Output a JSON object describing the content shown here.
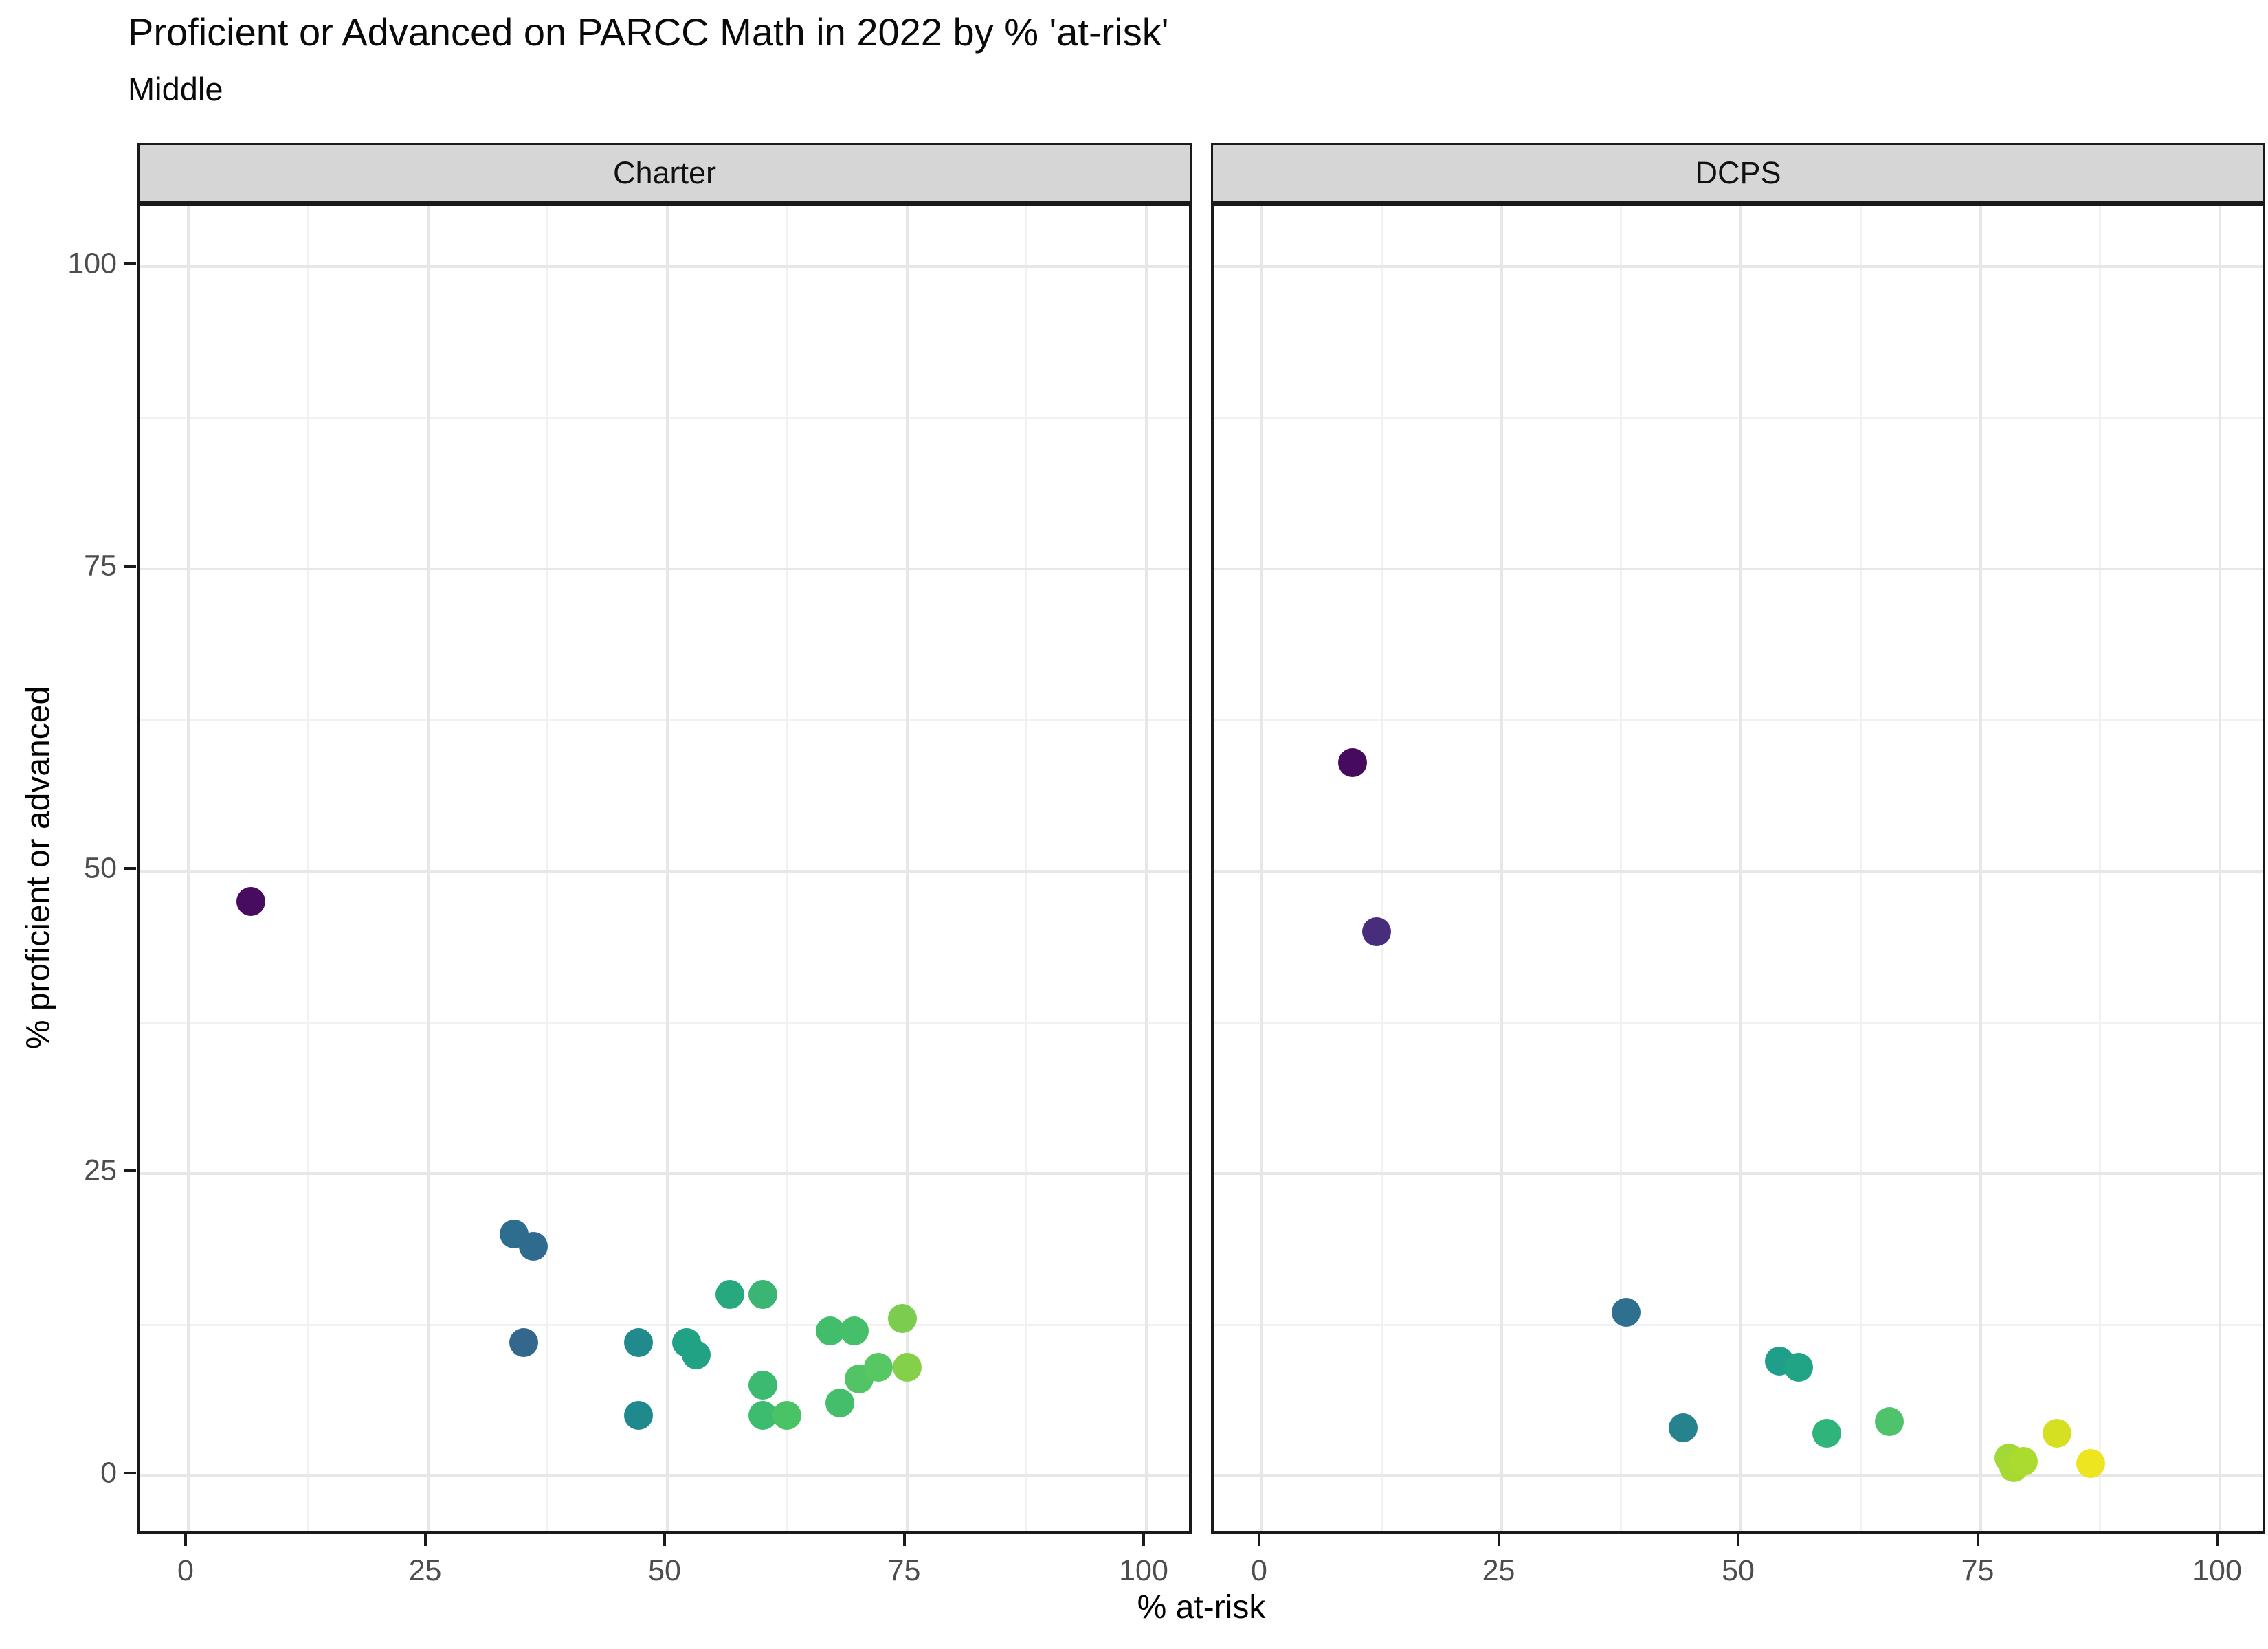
{
  "chart_data": {
    "type": "scatter",
    "title": "Proficient or Advanced on PARCC Math in 2022 by % 'at-risk'",
    "subtitle": "Middle",
    "xlabel": "% at-risk",
    "ylabel": "% proficient or advanced",
    "x_ticks": [
      0,
      25,
      50,
      75,
      100
    ],
    "y_ticks": [
      0,
      25,
      50,
      75,
      100
    ],
    "minor_ticks": [
      12.5,
      37.5,
      62.5,
      87.5
    ],
    "xlim": [
      -5,
      105
    ],
    "ylim": [
      -5,
      105
    ],
    "grid": "on",
    "legend": "none",
    "palette": "viridis",
    "colors": {
      "strip_bg": "#d6d6d6",
      "panel_border": "#1a1a1a",
      "grid_major": "#e7e7e7",
      "grid_minor": "#f1f1f1",
      "tick_label": "#4d4d4d",
      "axis_title": "#000000"
    },
    "facets": [
      {
        "label": "Charter",
        "points": [
          {
            "x": 6.5,
            "y": 47.5,
            "color": "#470b60"
          },
          {
            "x": 34,
            "y": 20,
            "color": "#2d6e8e"
          },
          {
            "x": 36,
            "y": 19,
            "color": "#2f6b8e"
          },
          {
            "x": 35,
            "y": 11,
            "color": "#33678d"
          },
          {
            "x": 47,
            "y": 11,
            "color": "#218a8d"
          },
          {
            "x": 47,
            "y": 5,
            "color": "#1f898d"
          },
          {
            "x": 52,
            "y": 11,
            "color": "#21a186"
          },
          {
            "x": 53,
            "y": 10,
            "color": "#22a285"
          },
          {
            "x": 56.5,
            "y": 15,
            "color": "#27a87e"
          },
          {
            "x": 60,
            "y": 15,
            "color": "#3bb573"
          },
          {
            "x": 60,
            "y": 7.5,
            "color": "#3cba72"
          },
          {
            "x": 60,
            "y": 5,
            "color": "#3dbb6f"
          },
          {
            "x": 62.5,
            "y": 5,
            "color": "#49c365"
          },
          {
            "x": 67,
            "y": 12,
            "color": "#41bd6b"
          },
          {
            "x": 69.5,
            "y": 12,
            "color": "#45bf6a"
          },
          {
            "x": 68,
            "y": 6,
            "color": "#44be6b"
          },
          {
            "x": 70,
            "y": 8,
            "color": "#52c465"
          },
          {
            "x": 72,
            "y": 9,
            "color": "#57c763"
          },
          {
            "x": 74.5,
            "y": 13,
            "color": "#7ccd4d"
          },
          {
            "x": 75,
            "y": 9,
            "color": "#84d04a"
          }
        ]
      },
      {
        "label": "DCPS",
        "points": [
          {
            "x": 9.5,
            "y": 59,
            "color": "#460b5e"
          },
          {
            "x": 12,
            "y": 45,
            "color": "#472d7b"
          },
          {
            "x": 38,
            "y": 13.5,
            "color": "#2e708e"
          },
          {
            "x": 44,
            "y": 4,
            "color": "#26838e"
          },
          {
            "x": 54,
            "y": 9.5,
            "color": "#1f9e89"
          },
          {
            "x": 56,
            "y": 9,
            "color": "#21a386"
          },
          {
            "x": 59,
            "y": 3.5,
            "color": "#2fb47b"
          },
          {
            "x": 65.5,
            "y": 4.5,
            "color": "#4ec36b"
          },
          {
            "x": 78,
            "y": 1.5,
            "color": "#a2d939"
          },
          {
            "x": 78.5,
            "y": 0.7,
            "color": "#a8d834"
          },
          {
            "x": 79.5,
            "y": 1.2,
            "color": "#abdb2f"
          },
          {
            "x": 83,
            "y": 3.5,
            "color": "#d6e022"
          },
          {
            "x": 86.5,
            "y": 1,
            "color": "#ede51f"
          }
        ]
      }
    ]
  }
}
